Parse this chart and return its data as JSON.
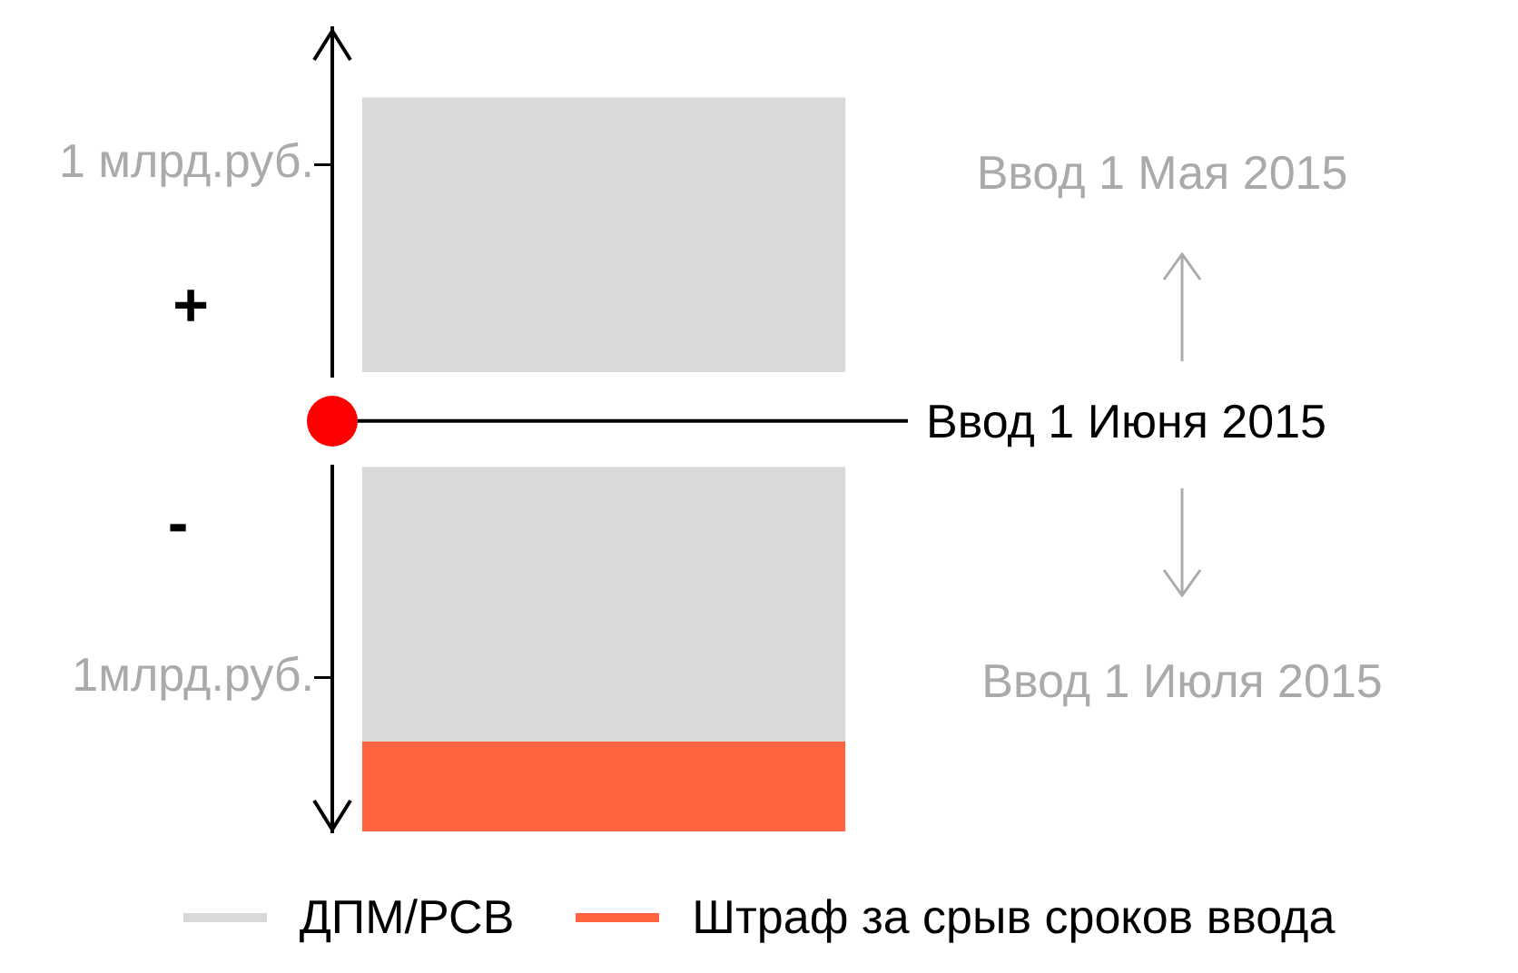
{
  "chart_data": {
    "type": "bar",
    "categories": [
      null
    ],
    "series": [
      {
        "name": "ДПМ/РСВ",
        "color": "#d9d9d9",
        "base": [
          0.19
        ],
        "values": [
          1.07
        ]
      },
      {
        "color": "#d9d9d9",
        "base": [
          -0.18
        ],
        "values": [
          -1.07
        ]
      },
      {
        "name": "Штраф за срыв сроков ввода",
        "color": "#ff6340",
        "base": [
          -1.25
        ],
        "values": [
          -0.35
        ]
      }
    ],
    "ylim": [
      -1.6,
      1.53
    ],
    "yticks": [
      {
        "value": 1,
        "label": "1 млрд.руб."
      },
      {
        "value": -1,
        "label": "1млрд.руб."
      }
    ],
    "ref_lines": [
      {
        "axis": "y",
        "value": 0,
        "label": "Ввод 1 Июня 2015",
        "color": "#000000"
      }
    ],
    "annotations": [
      "+",
      "-",
      "Ввод 1 Мая 2015",
      "Ввод 1 Июля 2015"
    ],
    "legend": "bottom"
  }
}
